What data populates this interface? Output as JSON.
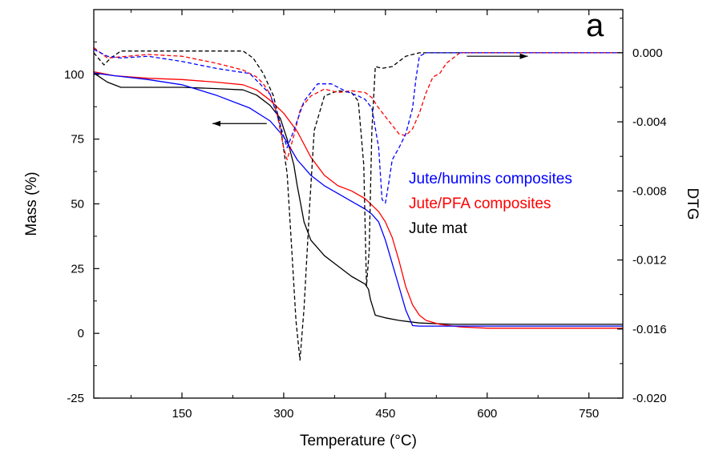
{
  "chart_data": {
    "type": "line",
    "panel_label": "a",
    "xlabel": "Temperature (°C)",
    "ylabel": "Mass (%)",
    "y2label": "DTG",
    "xlim": [
      20,
      800
    ],
    "ylim": [
      -25,
      125
    ],
    "y2lim": [
      -0.02,
      0.0025
    ],
    "x_ticks": [
      150,
      300,
      450,
      600,
      750
    ],
    "y_ticks": [
      -25,
      0,
      25,
      50,
      75,
      100
    ],
    "y2_ticks": [
      -0.02,
      -0.016,
      -0.012,
      -0.008,
      -0.004,
      0.0
    ],
    "x_tick_labels": [
      "150",
      "300",
      "450",
      "600",
      "750"
    ],
    "y_tick_labels": [
      "-25",
      "0",
      "25",
      "50",
      "75",
      "100"
    ],
    "y2_tick_labels": [
      "-0.020",
      "-0.016",
      "-0.012",
      "-0.008",
      "-0.004",
      "0.000"
    ],
    "grid": false,
    "legend_position": "center-right",
    "legend": [
      {
        "label": "Jute/humins composites",
        "color": "#0000ff"
      },
      {
        "label": "Jute/PFA composites",
        "color": "#ff0000"
      },
      {
        "label": "Jute mat",
        "color": "#000000"
      }
    ],
    "annotations": [
      {
        "type": "arrow",
        "direction": "left",
        "meaning": "solid curves read on left axis (Mass)",
        "x_from": 275,
        "x_to": 195,
        "y": 81
      },
      {
        "type": "arrow",
        "direction": "right",
        "meaning": "dashed curves read on right axis (DTG)",
        "x_from": 570,
        "x_to": 660,
        "y2": -0.0002
      }
    ],
    "series": [
      {
        "name": "Jute mat",
        "kind": "mass",
        "axis": "left",
        "color": "#000000",
        "dash": "solid",
        "x": [
          20,
          40,
          60,
          100,
          150,
          200,
          240,
          260,
          280,
          295,
          305,
          315,
          320,
          325,
          330,
          340,
          360,
          380,
          400,
          420,
          425,
          428,
          435,
          450,
          470,
          500,
          550,
          600,
          700,
          800
        ],
        "y": [
          100.5,
          97,
          95,
          95,
          95,
          94.5,
          94,
          92,
          88,
          83,
          75,
          65,
          57,
          50,
          43,
          36,
          30,
          26,
          22,
          19,
          17,
          13,
          7,
          6,
          5,
          4,
          3.5,
          3.5,
          3.5,
          3.5
        ]
      },
      {
        "name": "Jute/PFA composites",
        "kind": "mass",
        "axis": "left",
        "color": "#ff0000",
        "dash": "solid",
        "x": [
          20,
          50,
          100,
          150,
          200,
          240,
          260,
          280,
          300,
          320,
          340,
          360,
          380,
          400,
          420,
          440,
          450,
          460,
          470,
          480,
          490,
          500,
          510,
          530,
          560,
          600,
          700,
          800
        ],
        "y": [
          101,
          99.5,
          98.5,
          98,
          97,
          96,
          94,
          90,
          85,
          78,
          68,
          61,
          57,
          55,
          52,
          47,
          43,
          37,
          28,
          18,
          11,
          7,
          5,
          3.5,
          2.5,
          2,
          2,
          2
        ]
      },
      {
        "name": "Jute/humins composites",
        "kind": "mass",
        "axis": "left",
        "color": "#0000ff",
        "dash": "solid",
        "x": [
          20,
          50,
          100,
          150,
          200,
          250,
          280,
          300,
          320,
          340,
          360,
          380,
          400,
          420,
          430,
          440,
          450,
          460,
          470,
          480,
          490,
          500,
          550,
          600,
          700,
          800
        ],
        "y": [
          100.5,
          99.5,
          98,
          96,
          92,
          87,
          82,
          76,
          67,
          61,
          57,
          54,
          51,
          48,
          46,
          43,
          36,
          27,
          18,
          9,
          3,
          2.8,
          2.8,
          2.8,
          2.8,
          2.8
        ]
      },
      {
        "name": "Jute mat",
        "kind": "dtg",
        "axis": "right",
        "color": "#000000",
        "dash": "dashed",
        "x": [
          20,
          35,
          45,
          60,
          90,
          120,
          180,
          240,
          255,
          270,
          285,
          295,
          305,
          312,
          318,
          324,
          330,
          338,
          345,
          360,
          380,
          400,
          410,
          418,
          422,
          426,
          430,
          435,
          445,
          460,
          480,
          500,
          520,
          550,
          600,
          700,
          800
        ],
        "y": [
          0.0,
          -0.0007,
          -0.0003,
          0.0001,
          0.0001,
          0.0001,
          0.0001,
          0.0001,
          -0.0003,
          -0.0012,
          -0.0025,
          -0.0042,
          -0.007,
          -0.0115,
          -0.0155,
          -0.0178,
          -0.0148,
          -0.009,
          -0.0045,
          -0.0025,
          -0.0022,
          -0.0023,
          -0.0028,
          -0.0065,
          -0.0135,
          -0.0115,
          -0.0045,
          -0.0008,
          -0.0009,
          -0.0008,
          -0.0002,
          0.0,
          0.0,
          0.0,
          0.0,
          0.0,
          0.0
        ]
      },
      {
        "name": "Jute/PFA composites",
        "kind": "dtg",
        "axis": "right",
        "color": "#ff0000",
        "dash": "dashed",
        "x": [
          20,
          40,
          70,
          100,
          150,
          200,
          240,
          260,
          270,
          280,
          290,
          300,
          305,
          315,
          325,
          340,
          360,
          380,
          400,
          420,
          430,
          440,
          450,
          460,
          470,
          480,
          490,
          500,
          510,
          520,
          530,
          540,
          560,
          600,
          700,
          800
        ],
        "y": [
          0.0003,
          -0.0003,
          -0.0002,
          -0.0001,
          -0.0002,
          -0.0006,
          -0.001,
          -0.0014,
          -0.0018,
          -0.0024,
          -0.0035,
          -0.0055,
          -0.0062,
          -0.0048,
          -0.0032,
          -0.0025,
          -0.0021,
          -0.0023,
          -0.0022,
          -0.0023,
          -0.0026,
          -0.0032,
          -0.0037,
          -0.0042,
          -0.0047,
          -0.0048,
          -0.0044,
          -0.0035,
          -0.0023,
          -0.0014,
          -0.0012,
          -0.0006,
          0.0,
          0.0,
          0.0,
          0.0
        ]
      },
      {
        "name": "Jute/humins composites",
        "kind": "dtg",
        "axis": "right",
        "color": "#0000ff",
        "dash": "dashed",
        "x": [
          20,
          40,
          60,
          100,
          150,
          200,
          250,
          280,
          295,
          305,
          315,
          330,
          350,
          370,
          390,
          410,
          420,
          430,
          440,
          445,
          450,
          455,
          460,
          470,
          480,
          490,
          495,
          500,
          510,
          550,
          600,
          700,
          800
        ],
        "y": [
          0.0002,
          -0.0002,
          -0.0003,
          -0.0002,
          -0.0005,
          -0.0009,
          -0.0012,
          -0.0024,
          -0.0042,
          -0.0055,
          -0.0045,
          -0.0028,
          -0.0018,
          -0.0018,
          -0.0022,
          -0.0025,
          -0.0027,
          -0.0032,
          -0.0055,
          -0.0085,
          -0.0087,
          -0.0075,
          -0.0062,
          -0.0055,
          -0.0047,
          -0.0032,
          -0.0015,
          -0.0002,
          0.0,
          0.0,
          0.0,
          0.0,
          0.0
        ]
      }
    ]
  }
}
